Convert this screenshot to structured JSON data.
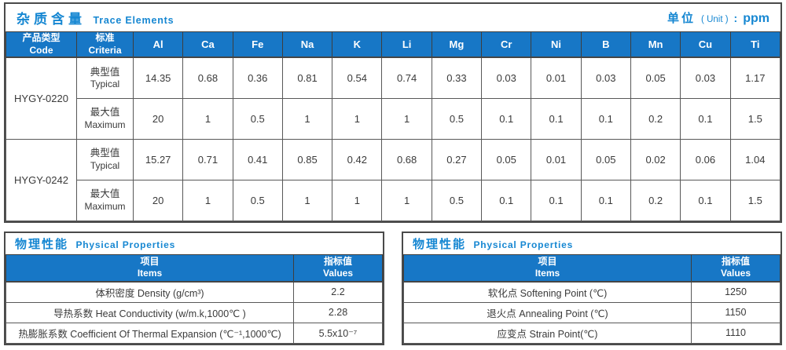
{
  "trace": {
    "title_cn": "杂质含量",
    "title_en": "Trace Elements",
    "unit_cn": "单位",
    "unit_paren": "( Unit )",
    "unit_colon": ":",
    "unit_value": "ppm",
    "code_header_cn": "产品类型",
    "code_header_en": "Code",
    "criteria_header_cn": "标准",
    "criteria_header_en": "Criteria",
    "elements": [
      "Al",
      "Ca",
      "Fe",
      "Na",
      "K",
      "Li",
      "Mg",
      "Cr",
      "Ni",
      "B",
      "Mn",
      "Cu",
      "Ti"
    ],
    "groups": [
      {
        "code": "HYGY-0220",
        "rows": [
          {
            "label_cn": "典型值",
            "label_en": "Typical",
            "values": [
              "14.35",
              "0.68",
              "0.36",
              "0.81",
              "0.54",
              "0.74",
              "0.33",
              "0.03",
              "0.01",
              "0.03",
              "0.05",
              "0.03",
              "1.17"
            ]
          },
          {
            "label_cn": "最大值",
            "label_en": "Maximum",
            "values": [
              "20",
              "1",
              "0.5",
              "1",
              "1",
              "1",
              "0.5",
              "0.1",
              "0.1",
              "0.1",
              "0.2",
              "0.1",
              "1.5"
            ]
          }
        ]
      },
      {
        "code": "HYGY-0242",
        "rows": [
          {
            "label_cn": "典型值",
            "label_en": "Typical",
            "values": [
              "15.27",
              "0.71",
              "0.41",
              "0.85",
              "0.42",
              "0.68",
              "0.27",
              "0.05",
              "0.01",
              "0.05",
              "0.02",
              "0.06",
              "1.04"
            ]
          },
          {
            "label_cn": "最大值",
            "label_en": "Maximum",
            "values": [
              "20",
              "1",
              "0.5",
              "1",
              "1",
              "1",
              "0.5",
              "0.1",
              "0.1",
              "0.1",
              "0.2",
              "0.1",
              "1.5"
            ]
          }
        ]
      }
    ]
  },
  "physical": [
    {
      "title_cn": "物理性能",
      "title_en": "Physical Properties",
      "items_header_cn": "项目",
      "items_header_en": "Items",
      "values_header_cn": "指标值",
      "values_header_en": "Values",
      "rows": [
        {
          "item": "体积密度 Density (g/cm³)",
          "value": "2.2"
        },
        {
          "item": "导热系数 Heat Conductivity (w/m.k,1000℃ )",
          "value": "2.28"
        },
        {
          "item": "热膨胀系数 Coefficient Of Thermal Expansion (℃⁻¹,1000℃)",
          "value": "5.5x10⁻⁷"
        }
      ]
    },
    {
      "title_cn": "物理性能",
      "title_en": "Physical Properties",
      "items_header_cn": "项目",
      "items_header_en": "Items",
      "values_header_cn": "指标值",
      "values_header_en": "Values",
      "rows": [
        {
          "item": "软化点 Softening Point (℃)",
          "value": "1250"
        },
        {
          "item": "退火点 Annealing Point (℃)",
          "value": "1150"
        },
        {
          "item": "应变点 Strain Point(℃)",
          "value": "1110"
        }
      ]
    }
  ]
}
